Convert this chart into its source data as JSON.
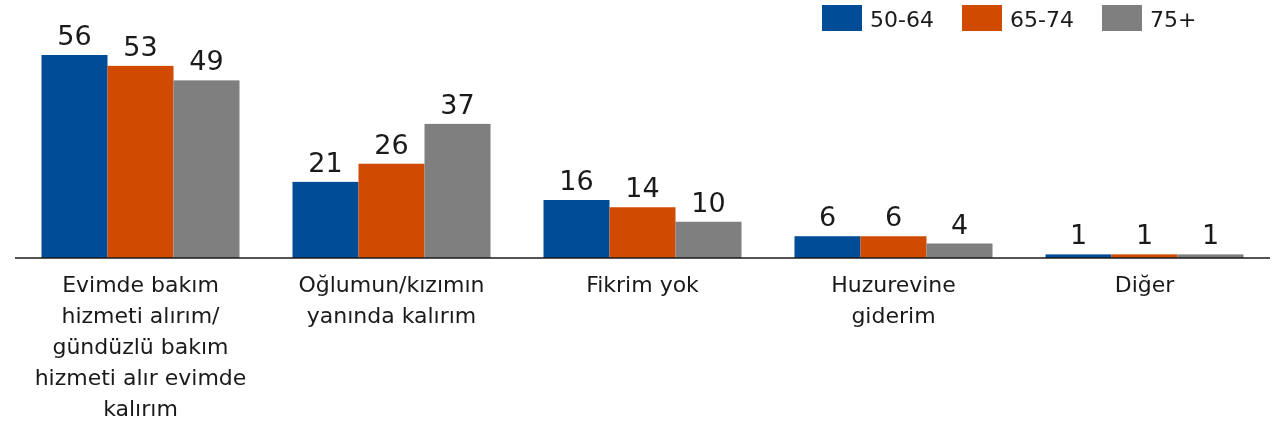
{
  "chart_data": {
    "type": "bar",
    "categories": [
      "Evimde bakım hizmeti alırım/ gündüzlü bakım hizmeti alır evimde kalırım",
      "Oğlumun/kızımın yanında kalırım",
      "Fikrim yok",
      "Huzurevine giderim",
      "Diğer"
    ],
    "series": [
      {
        "name": "50-64",
        "color": "#004c97",
        "values": [
          56,
          21,
          16,
          6,
          1
        ]
      },
      {
        "name": "65-74",
        "color": "#d04a02",
        "values": [
          53,
          26,
          14,
          6,
          1
        ]
      },
      {
        "name": "75+",
        "color": "#7f7f7f",
        "values": [
          49,
          37,
          10,
          4,
          1
        ]
      }
    ],
    "data_labels": true,
    "legend": "top right"
  }
}
